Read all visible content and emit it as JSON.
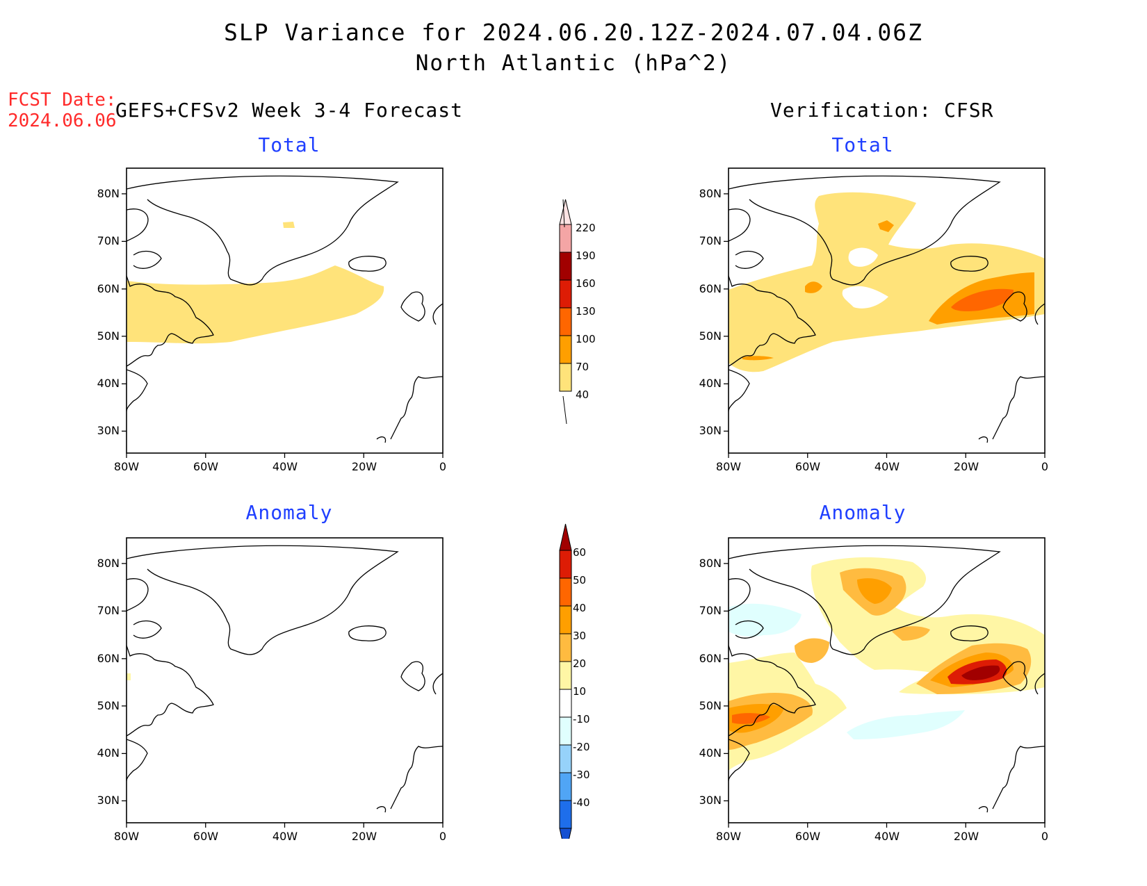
{
  "header": {
    "title": "SLP Variance for 2024.06.20.12Z-2024.07.04.06Z",
    "subtitle": "North Atlantic (hPa^2)",
    "fcst_label": "FCST Date:",
    "fcst_date": "2024.06.06"
  },
  "columns": {
    "forecast": "GEFS+CFSv2 Week 3-4 Forecast",
    "verification": "Verification: CFSR"
  },
  "panels": {
    "total_title": "Total",
    "anomaly_title": "Anomaly"
  },
  "axes": {
    "lat_labels": [
      "80N",
      "70N",
      "60N",
      "50N",
      "40N",
      "30N"
    ],
    "lon_labels": [
      "80W",
      "60W",
      "40W",
      "20W",
      "0"
    ]
  },
  "colorbars": {
    "total": {
      "labels": [
        "220",
        "190",
        "160",
        "130",
        "100",
        "70",
        "40"
      ],
      "colors": [
        "#fde3e3",
        "#f4a5a5",
        "#a10000",
        "#dd1c05",
        "#ff6600",
        "#ff9f00",
        "#ffe37a"
      ]
    },
    "anomaly": {
      "labels": [
        "60",
        "50",
        "40",
        "30",
        "20",
        "10",
        "-10",
        "-20",
        "-30",
        "-40"
      ],
      "colors": [
        "#a10000",
        "#dd1c05",
        "#ff6600",
        "#ff9f00",
        "#ffbb40",
        "#fff6a5",
        "#ffffff",
        "#e0fffe",
        "#96d2fa",
        "#50a5f5",
        "#1e6eeb",
        "#1450d2"
      ]
    }
  }
}
